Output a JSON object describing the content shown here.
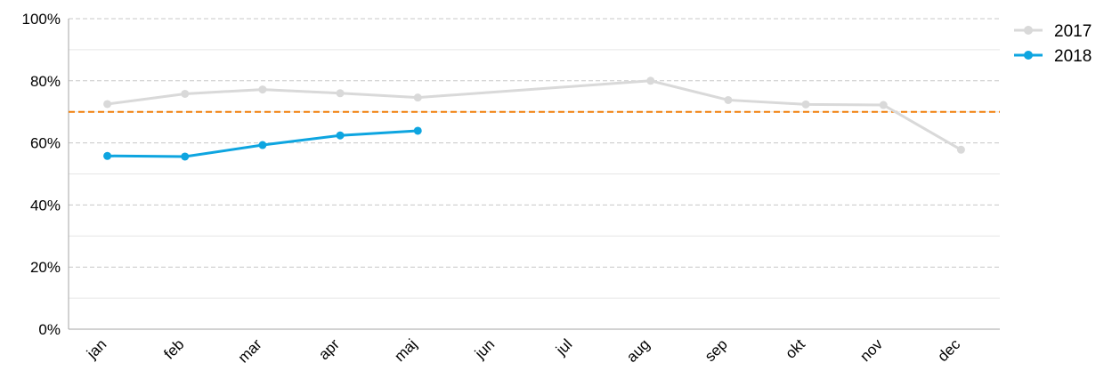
{
  "chart_data": {
    "type": "line",
    "categories": [
      "jan",
      "feb",
      "mar",
      "apr",
      "maj",
      "jun",
      "jul",
      "aug",
      "sep",
      "okt",
      "nov",
      "dec"
    ],
    "series": [
      {
        "name": "2017",
        "color": "#d9d9d9",
        "values": [
          72.5,
          75.8,
          77.2,
          76.0,
          74.6,
          null,
          null,
          80.0,
          73.8,
          72.4,
          72.2,
          57.8
        ]
      },
      {
        "name": "2018",
        "color": "#0ea5e0",
        "values": [
          55.8,
          55.6,
          59.3,
          62.4,
          63.9,
          null,
          null,
          null,
          null,
          null,
          null,
          null
        ]
      }
    ],
    "target_line": {
      "value": 70,
      "color": "#f07f09",
      "style": "dashed"
    },
    "title": "",
    "xlabel": "",
    "ylabel": "",
    "ylim": [
      0,
      100
    ],
    "y_ticks": [
      "0%",
      "20%",
      "40%",
      "60%",
      "80%",
      "100%"
    ],
    "y_tick_values": [
      0,
      20,
      40,
      60,
      80,
      100
    ],
    "grid": true,
    "legend_position": "top-right"
  }
}
